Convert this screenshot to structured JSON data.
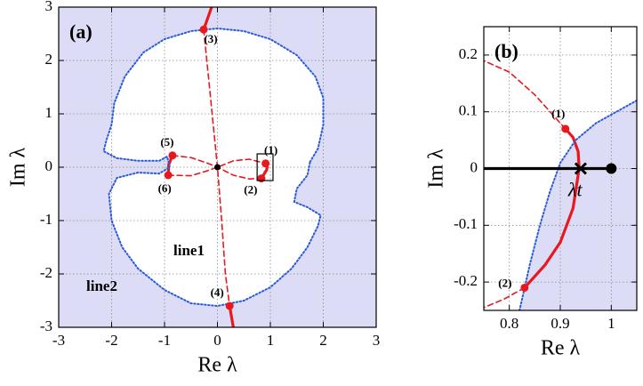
{
  "chart_data": [
    {
      "type": "line",
      "panel": "(a)",
      "xlabel": "Re λ",
      "ylabel": "Im λ",
      "xlim": [
        -3,
        3
      ],
      "ylim": [
        -3,
        3
      ],
      "xticks": [
        -3,
        -2,
        -1,
        0,
        1,
        2,
        3
      ],
      "yticks": [
        -3,
        -2,
        -1,
        0,
        1,
        2,
        3
      ],
      "grid": true,
      "shade_color": "#dcdcf6",
      "series": [
        {
          "name": "line1",
          "color": "#e8191e",
          "linestyle": "dashed",
          "x": [
            -0.26,
            -0.15,
            -0.05,
            0,
            0.08,
            0.15,
            0.23,
            null,
            -0.85,
            -0.5,
            -0.2,
            0,
            0.3,
            0.6,
            0.83,
            null,
            -0.93,
            -0.5,
            -0.2,
            0,
            0.3,
            0.6,
            0.91
          ],
          "y": [
            2.58,
            1.5,
            0.5,
            0,
            -1,
            -2,
            -2.6,
            null,
            0.22,
            0.18,
            0.08,
            0,
            -0.15,
            -0.22,
            -0.21,
            null,
            -0.15,
            -0.16,
            -0.07,
            0,
            0.12,
            0.15,
            0.07
          ]
        },
        {
          "color": "#e8191e",
          "linestyle": "solid",
          "x": [
            -0.26,
            -0.11,
            null,
            0.23,
            0.3,
            null,
            0.91,
            0.94,
            0.93,
            0.83,
            null,
            -0.85,
            -0.92,
            -0.93
          ],
          "y": [
            2.58,
            3,
            null,
            -2.6,
            -3,
            null,
            0.07,
            0,
            -0.05,
            -0.21,
            null,
            0.22,
            0.05,
            -0.15
          ]
        },
        {
          "name": "line2",
          "color": "#2a5bd7",
          "linestyle": "dotted",
          "x": [
            1.75,
            1.9,
            2.0,
            2.0,
            1.85,
            1.5,
            1.0,
            0.5,
            0,
            -0.5,
            -1.0,
            -1.4,
            -1.75,
            -1.95,
            -2.0,
            -2.1,
            -2.15,
            -1.9,
            -1.5,
            -1.1,
            -0.95,
            -0.9,
            -1.1,
            -1.5,
            -1.9,
            -2.05,
            -2.0,
            -1.8,
            -1.5,
            -1.0,
            -0.5,
            0,
            0.5,
            1.0,
            1.4,
            1.7,
            1.9,
            1.95,
            1.7,
            1.45,
            1.5,
            1.7,
            1.75
          ],
          "y": [
            0.1,
            0.35,
            0.8,
            1.3,
            1.7,
            2.1,
            2.4,
            2.55,
            2.6,
            2.55,
            2.4,
            2.15,
            1.7,
            1.2,
            0.8,
            0.5,
            0.3,
            0.17,
            0.12,
            0.12,
            0.2,
            0.0,
            -0.12,
            -0.1,
            -0.2,
            -0.5,
            -1.0,
            -1.5,
            -1.9,
            -2.3,
            -2.55,
            -2.6,
            -2.5,
            -2.25,
            -1.9,
            -1.5,
            -1.1,
            -0.9,
            -0.75,
            -0.65,
            -0.4,
            -0.15,
            0.1
          ]
        }
      ],
      "points": [
        {
          "label": "(1)",
          "x": 0.91,
          "y": 0.07
        },
        {
          "label": "(2)",
          "x": 0.83,
          "y": -0.21
        },
        {
          "label": "(3)",
          "x": -0.26,
          "y": 2.58
        },
        {
          "label": "(4)",
          "x": 0.23,
          "y": -2.6
        },
        {
          "label": "(5)",
          "x": -0.85,
          "y": 0.22
        },
        {
          "label": "(6)",
          "x": -0.93,
          "y": -0.15
        }
      ],
      "markers": [
        {
          "x": 0,
          "y": 0,
          "marker": "dot"
        }
      ]
    },
    {
      "type": "line",
      "panel": "(b)",
      "xlabel": "Re λ",
      "ylabel": "Im λ",
      "xlim": [
        0.75,
        1.05
      ],
      "ylim": [
        -0.25,
        0.25
      ],
      "xticks": [
        0.8,
        0.9,
        1
      ],
      "yticks": [
        -0.2,
        -0.1,
        0,
        0.1,
        0.2
      ],
      "grid": true,
      "shade_color": "#dcdcf6",
      "series": [
        {
          "color": "#e8191e",
          "linestyle": "dashed",
          "x": [
            0.91,
            0.85,
            0.8,
            0.75,
            null,
            0.83,
            0.79,
            0.75
          ],
          "y": [
            0.07,
            0.13,
            0.17,
            0.19,
            null,
            -0.21,
            -0.23,
            -0.245
          ]
        },
        {
          "color": "#e8191e",
          "linestyle": "solid",
          "x": [
            0.83,
            0.87,
            0.9,
            0.925,
            0.937,
            0.935,
            0.925,
            0.91
          ],
          "y": [
            -0.21,
            -0.17,
            -0.13,
            -0.07,
            0,
            0.03,
            0.055,
            0.07
          ]
        },
        {
          "color": "#2a5bd7",
          "linestyle": "dotted",
          "x": [
            0.82,
            0.84,
            0.86,
            0.88,
            0.9,
            0.93,
            0.97,
            1.01,
            1.05
          ],
          "y": [
            -0.25,
            -0.17,
            -0.1,
            -0.04,
            0.01,
            0.05,
            0.08,
            0.1,
            0.12
          ]
        },
        {
          "color": "#000000",
          "linestyle": "solid",
          "x": [
            0.75,
            1
          ],
          "y": [
            0,
            0
          ]
        }
      ],
      "points": [
        {
          "label": "(1)",
          "x": 0.91,
          "y": 0.07
        },
        {
          "label": "(2)",
          "x": 0.83,
          "y": -0.21
        }
      ],
      "markers": [
        {
          "x": 1,
          "y": 0,
          "marker": "dot"
        },
        {
          "x": 0.94,
          "y": 0,
          "marker": "cross",
          "label": "λt"
        }
      ]
    }
  ]
}
